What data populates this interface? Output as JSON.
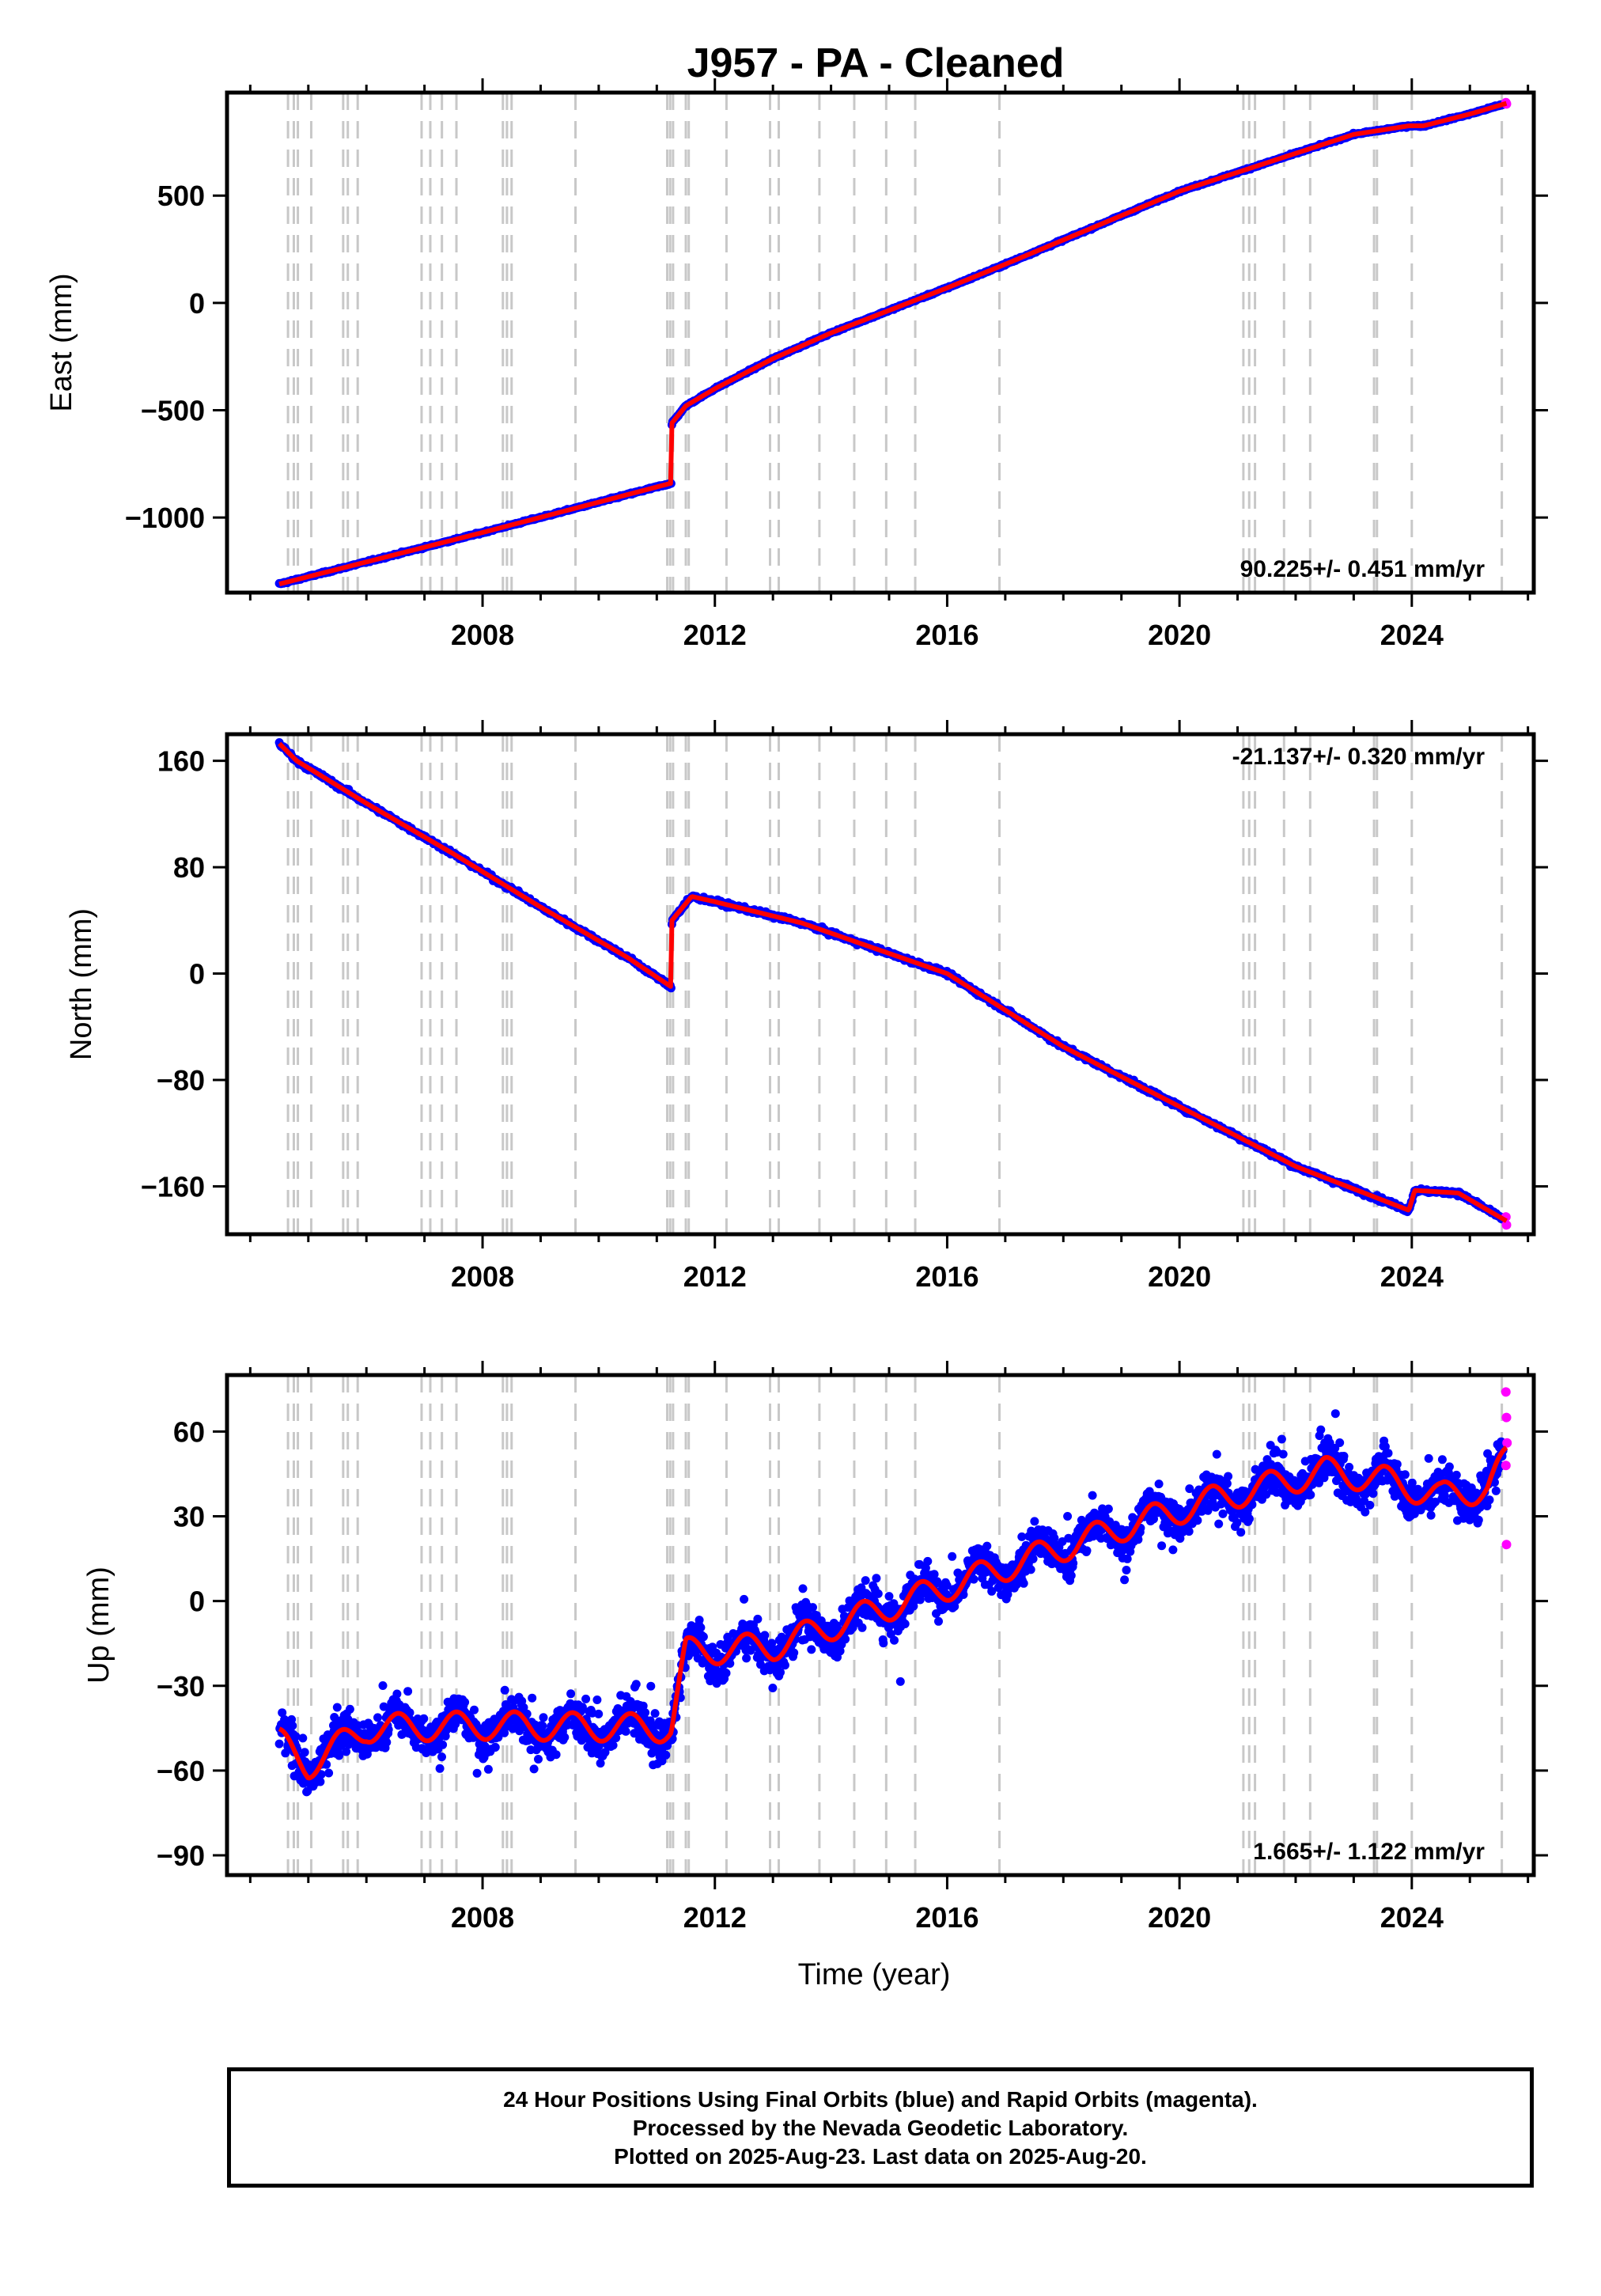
{
  "title": "J957  - PA - Cleaned",
  "xlabel": "Time (year)",
  "footer": [
    "24 Hour Positions Using Final Orbits (blue) and Rapid Orbits (magenta).",
    "Processed by the Nevada Geodetic Laboratory.",
    "Plotted on 2025-Aug-23. Last data on 2025-Aug-20."
  ],
  "colors": {
    "final_orbits": "#0000ff",
    "rapid_orbits": "#ff00ff",
    "model_fit": "#ff0000",
    "event_lines": "#c8c8c8",
    "frame": "#000000"
  },
  "chart_data": [
    {
      "type": "scatter",
      "name": "east",
      "ylabel": "East (mm)",
      "xlim": [
        2003.6,
        2026.1
      ],
      "ylim": [
        -1350,
        980
      ],
      "x_ticks": [
        2008,
        2012,
        2016,
        2020,
        2024
      ],
      "y_ticks": [
        -1000,
        -500,
        0,
        500
      ],
      "y_tick_labels": [
        "−1000",
        "−500",
        "0",
        "500"
      ],
      "rate_label": "90.225+/- 0.451 mm/yr",
      "rate_position": "bottom-right",
      "grid": false,
      "fit_points": [
        [
          2004.5,
          -1310
        ],
        [
          2008.0,
          -1070
        ],
        [
          2011.25,
          -840
        ],
        [
          2011.26,
          -560
        ],
        [
          2011.5,
          -480
        ],
        [
          2012.0,
          -400
        ],
        [
          2013.0,
          -260
        ],
        [
          2014.0,
          -140
        ],
        [
          2016.0,
          70
        ],
        [
          2017.0,
          180
        ],
        [
          2020.0,
          520
        ],
        [
          2023.0,
          785
        ],
        [
          2023.95,
          825
        ],
        [
          2024.2,
          825
        ],
        [
          2025.0,
          880
        ],
        [
          2025.63,
          930
        ]
      ]
    },
    {
      "type": "scatter",
      "name": "north",
      "ylabel": "North (mm)",
      "xlim": [
        2003.6,
        2026.1
      ],
      "ylim": [
        -196,
        180
      ],
      "x_ticks": [
        2008,
        2012,
        2016,
        2020,
        2024
      ],
      "y_ticks": [
        -160,
        -80,
        0,
        80,
        160
      ],
      "y_tick_labels": [
        "−160",
        "−80",
        "0",
        "80",
        "160"
      ],
      "rate_label": "-21.137+/- 0.320 mm/yr",
      "rate_position": "top-right",
      "grid": false,
      "fit_points": [
        [
          2004.5,
          173
        ],
        [
          2004.8,
          160
        ],
        [
          2006.0,
          128
        ],
        [
          2007.5,
          90
        ],
        [
          2009.0,
          50
        ],
        [
          2010.5,
          12
        ],
        [
          2011.25,
          -10
        ],
        [
          2011.26,
          40
        ],
        [
          2011.6,
          58
        ],
        [
          2012.0,
          54
        ],
        [
          2013.5,
          38
        ],
        [
          2016.0,
          0
        ],
        [
          2018.0,
          -55
        ],
        [
          2020.0,
          -100
        ],
        [
          2022.0,
          -145
        ],
        [
          2023.95,
          -178
        ],
        [
          2024.05,
          -163
        ],
        [
          2024.8,
          -165
        ],
        [
          2025.63,
          -186
        ]
      ]
    },
    {
      "type": "scatter",
      "name": "up",
      "ylabel": "Up (mm)",
      "xlim": [
        2003.6,
        2026.1
      ],
      "ylim": [
        -97,
        80
      ],
      "x_ticks": [
        2008,
        2012,
        2016,
        2020,
        2024
      ],
      "y_ticks": [
        -90,
        -60,
        -30,
        0,
        30,
        60
      ],
      "y_tick_labels": [
        "−90",
        "−60",
        "−30",
        "0",
        "30",
        "60"
      ],
      "rate_label": "1.665+/- 1.122 mm/yr",
      "rate_position": "bottom-right",
      "grid": false,
      "seasonal_amplitude_mm": 5,
      "scatter_sigma_mm": 7,
      "fit_points": [
        [
          2004.5,
          -50
        ],
        [
          2005.0,
          -58
        ],
        [
          2006.0,
          -45
        ],
        [
          2008.0,
          -44
        ],
        [
          2011.25,
          -45
        ],
        [
          2011.5,
          -18
        ],
        [
          2013.0,
          -16
        ],
        [
          2015.0,
          -2
        ],
        [
          2017.0,
          12
        ],
        [
          2019.0,
          26
        ],
        [
          2020.6,
          36
        ],
        [
          2021.0,
          38
        ],
        [
          2022.5,
          46
        ],
        [
          2023.5,
          43
        ],
        [
          2024.5,
          37
        ],
        [
          2025.3,
          40
        ],
        [
          2025.63,
          50
        ]
      ],
      "rapid_points": [
        [
          2025.62,
          74
        ],
        [
          2025.63,
          65
        ],
        [
          2025.64,
          56
        ],
        [
          2025.62,
          48
        ],
        [
          2025.63,
          20
        ]
      ]
    }
  ],
  "event_lines": [
    2004.65,
    2004.75,
    2004.82,
    2005.05,
    2005.6,
    2005.68,
    2005.85,
    2006.95,
    2007.1,
    2007.3,
    2007.55,
    2008.35,
    2008.42,
    2008.5,
    2009.6,
    2011.18,
    2011.23,
    2011.28,
    2011.5,
    2011.55,
    2012.2,
    2012.95,
    2013.1,
    2013.8,
    2014.4,
    2014.95,
    2015.45,
    2016.9,
    2021.1,
    2021.2,
    2021.3,
    2021.8,
    2022.25,
    2023.35,
    2023.4,
    2024.0,
    2025.55
  ]
}
